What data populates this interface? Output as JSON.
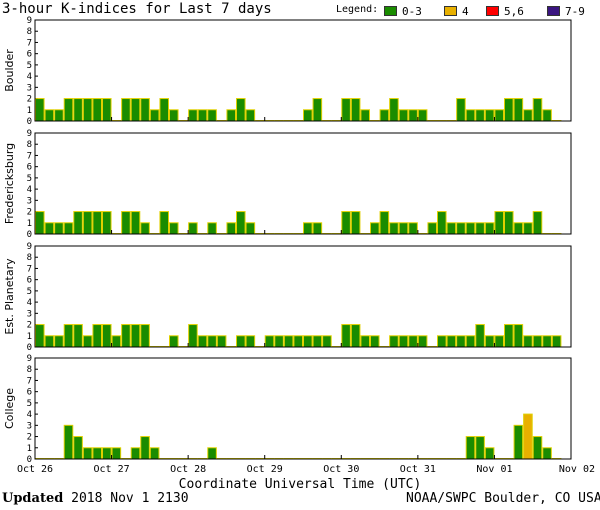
{
  "title": "3-hour K-indices for Last 7 days",
  "legend": {
    "label": "Legend:",
    "items": [
      {
        "label": "0-3",
        "color": "#1a8c00"
      },
      {
        "label": "4",
        "color": "#e8b000"
      },
      {
        "label": "5,6",
        "color": "#ff0000"
      },
      {
        "label": "7-9",
        "color": "#3a1580"
      }
    ]
  },
  "footer": {
    "updated_label": "Updated",
    "updated_value": "2018 Nov  1 2130",
    "source": "NOAA/SWPC Boulder, CO USA"
  },
  "chart_data": {
    "type": "bar",
    "xlabel": "Coordinate Universal Time (UTC)",
    "ylim": [
      0,
      9
    ],
    "y_ticks": [
      0,
      1,
      2,
      3,
      4,
      5,
      6,
      7,
      8,
      9
    ],
    "x_tick_labels": [
      "Oct 26",
      "Oct 27",
      "Oct 28",
      "Oct 29",
      "Oct 30",
      "Oct 31",
      "Nov 01",
      "Nov 02"
    ],
    "bars_per_day": 8,
    "color_rules": [
      {
        "max": 3,
        "color": "#1a8c00"
      },
      {
        "max": 4,
        "color": "#e8b000"
      },
      {
        "max": 6,
        "color": "#ff0000"
      },
      {
        "max": 9,
        "color": "#3a1580"
      }
    ],
    "panels": [
      {
        "name": "Boulder",
        "values": [
          2,
          1,
          1,
          2,
          2,
          2,
          2,
          2,
          0,
          2,
          2,
          2,
          1,
          2,
          1,
          0,
          1,
          1,
          1,
          0,
          1,
          2,
          1,
          0,
          0,
          0,
          0,
          0,
          1,
          2,
          0,
          0,
          2,
          2,
          1,
          0,
          1,
          2,
          1,
          1,
          1,
          0,
          0,
          0,
          2,
          1,
          1,
          1,
          1,
          2,
          2,
          1,
          2,
          1,
          0
        ]
      },
      {
        "name": "Fredericksburg",
        "values": [
          2,
          1,
          1,
          1,
          2,
          2,
          2,
          2,
          0,
          2,
          2,
          1,
          0,
          2,
          1,
          0,
          1,
          0,
          1,
          0,
          1,
          2,
          1,
          0,
          0,
          0,
          0,
          0,
          1,
          1,
          0,
          0,
          2,
          2,
          0,
          1,
          2,
          1,
          1,
          1,
          0,
          1,
          2,
          1,
          1,
          1,
          1,
          1,
          2,
          2,
          1,
          1,
          2,
          0,
          0
        ]
      },
      {
        "name": "Est. Planetary",
        "values": [
          2,
          1,
          1,
          2,
          2,
          1,
          2,
          2,
          1,
          2,
          2,
          2,
          0,
          0,
          1,
          0,
          2,
          1,
          1,
          1,
          0,
          1,
          1,
          0,
          1,
          1,
          1,
          1,
          1,
          1,
          1,
          0,
          2,
          2,
          1,
          1,
          0,
          1,
          1,
          1,
          1,
          0,
          1,
          1,
          1,
          1,
          2,
          1,
          1,
          2,
          2,
          1,
          1,
          1,
          1
        ]
      },
      {
        "name": "College",
        "values": [
          0,
          0,
          0,
          3,
          2,
          1,
          1,
          1,
          1,
          0,
          1,
          2,
          1,
          0,
          0,
          0,
          0,
          0,
          1,
          0,
          0,
          0,
          0,
          0,
          0,
          0,
          0,
          0,
          0,
          0,
          0,
          0,
          0,
          0,
          0,
          0,
          0,
          0,
          0,
          0,
          0,
          0,
          0,
          0,
          0,
          2,
          2,
          1,
          0,
          0,
          3,
          4,
          2,
          1,
          0
        ]
      }
    ]
  }
}
